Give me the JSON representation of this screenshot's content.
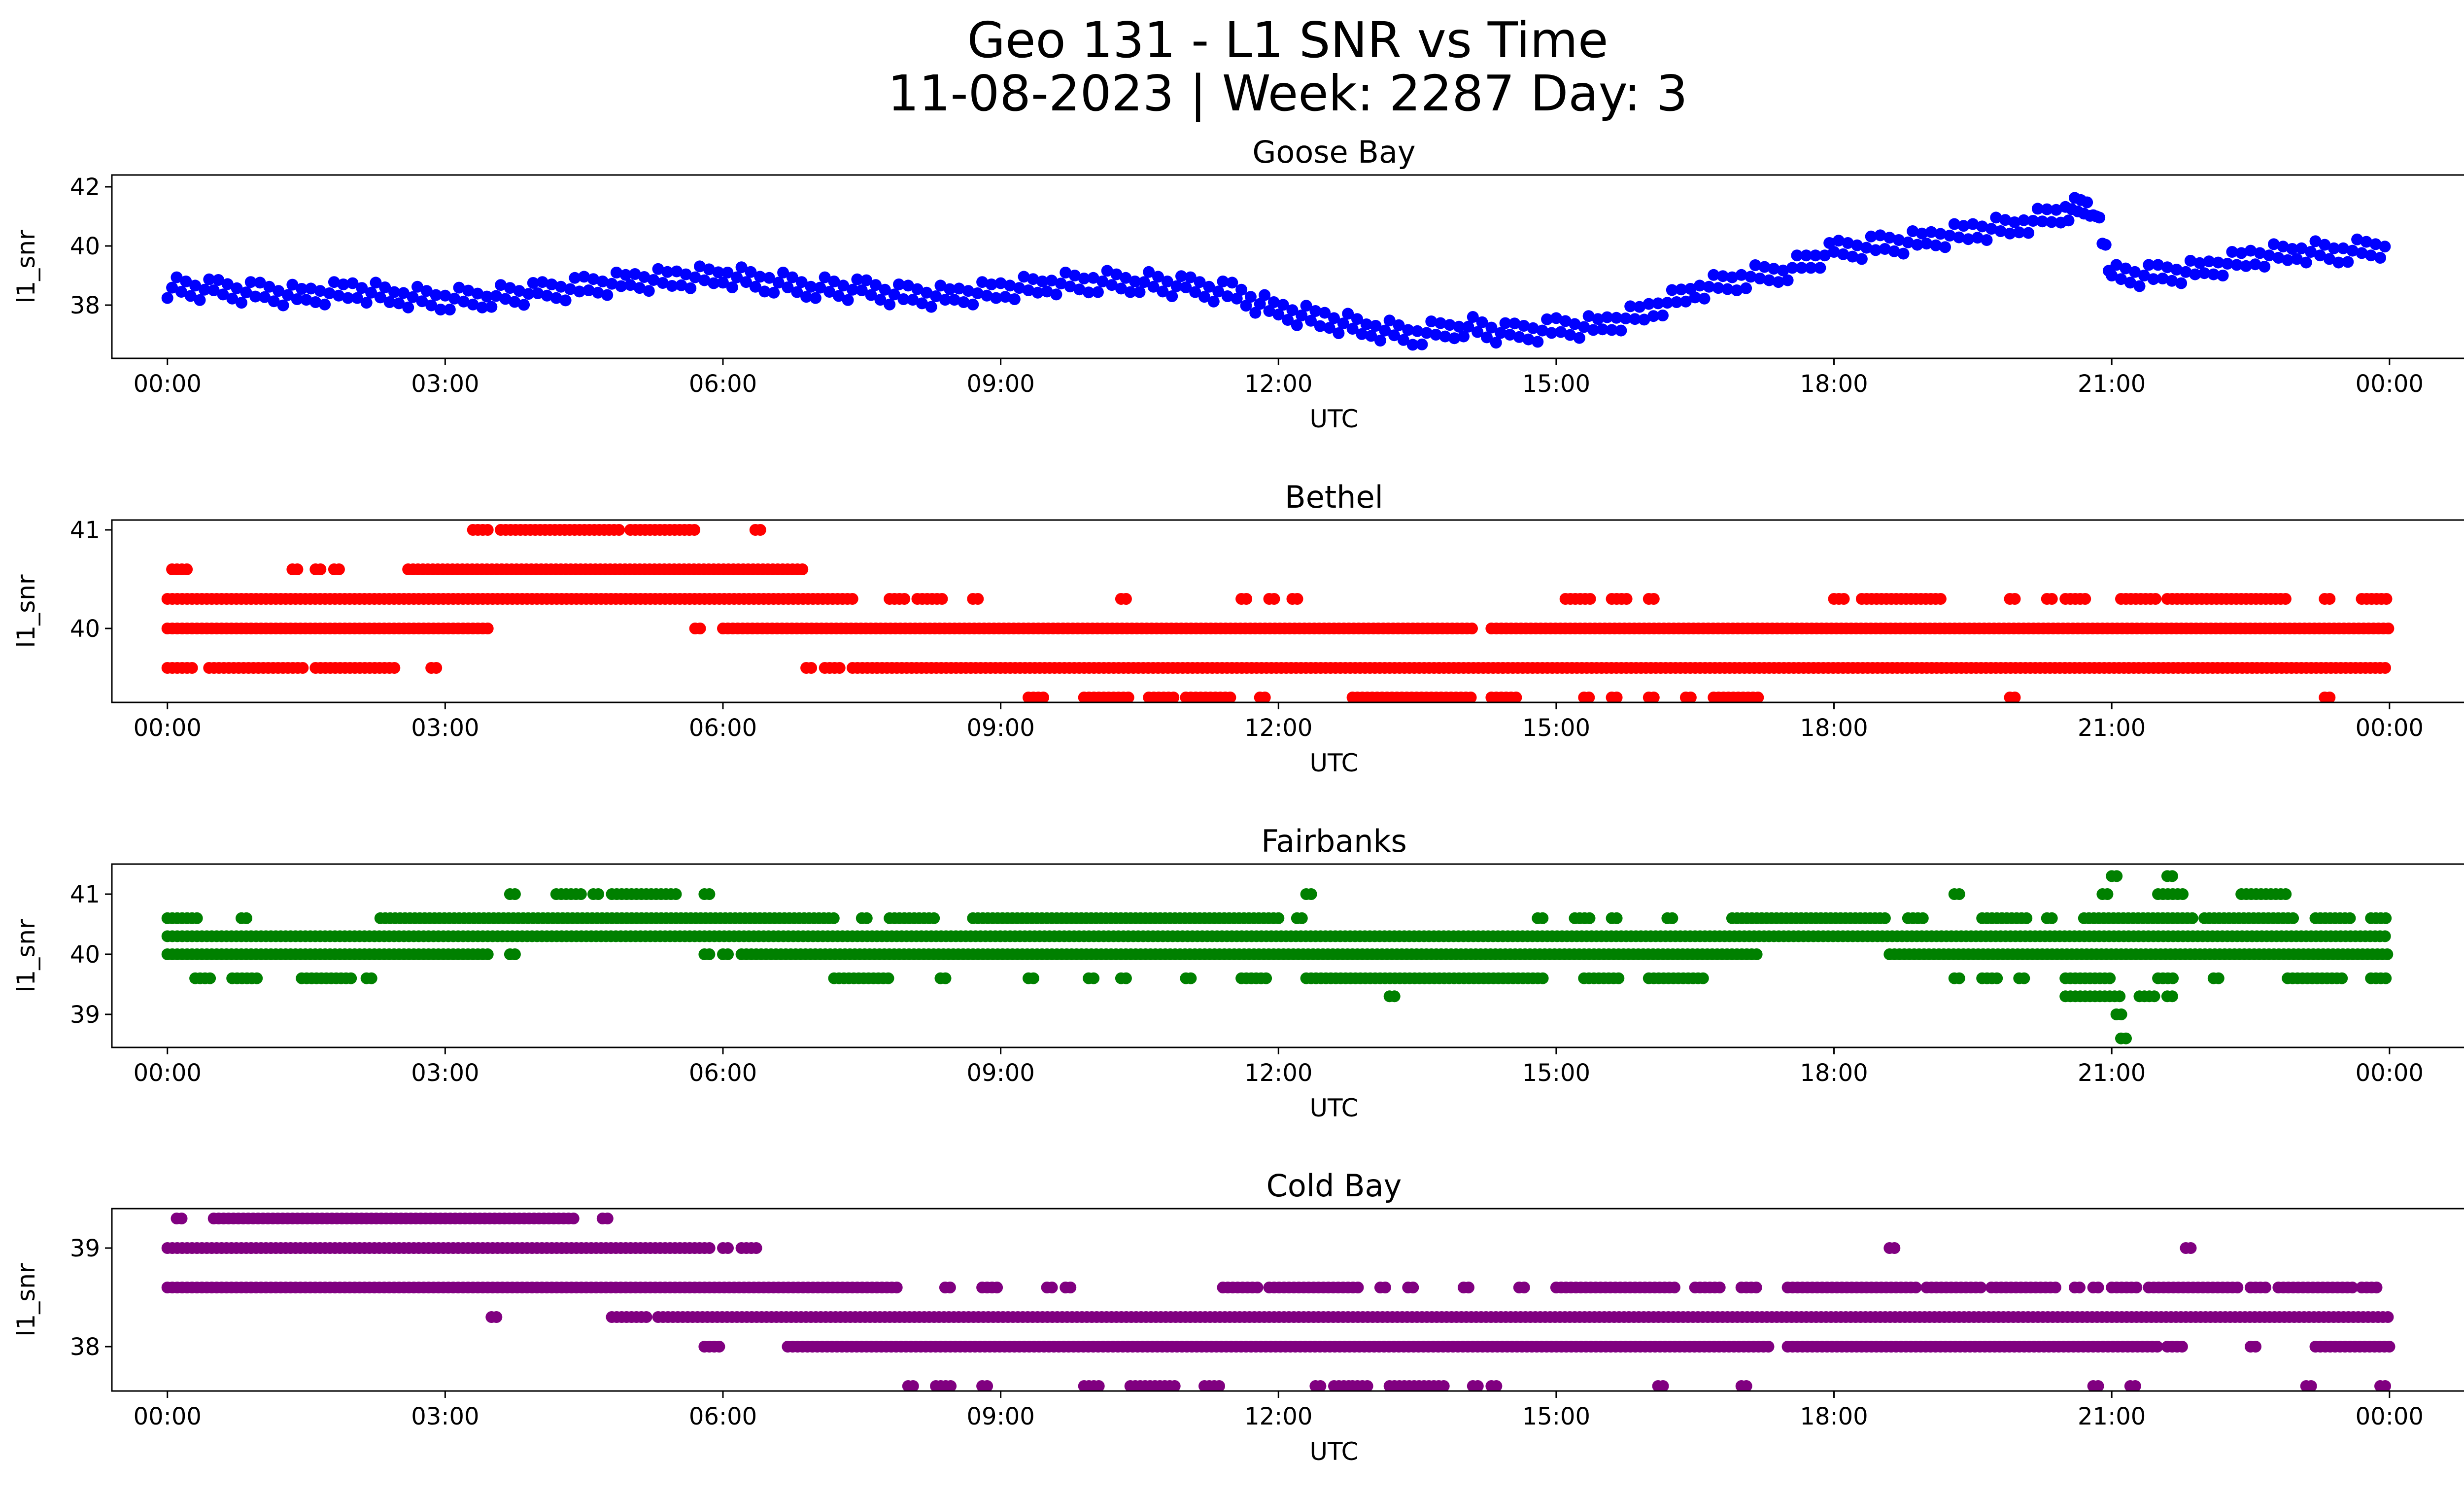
{
  "figure": {
    "title_line1": "Geo 131 - L1 SNR vs Time",
    "title_line2": "11-08-2023 | Week: 2287 Day: 3"
  },
  "chart_data": [
    {
      "type": "scatter",
      "title": "Goose Bay",
      "xlabel": "UTC",
      "ylabel": "l1_snr",
      "color": "#0000ff",
      "x_ticks": [
        "00:00",
        "03:00",
        "06:00",
        "09:00",
        "12:00",
        "15:00",
        "18:00",
        "21:00",
        "00:00"
      ],
      "x_range_hours": [
        -0.6,
        25.8
      ],
      "y_ticks": [
        38,
        40,
        42
      ],
      "ylim": [
        36.2,
        42.4
      ],
      "series": [
        {
          "kind": "profile",
          "values": [
            [
              0.0,
              38.6
            ],
            [
              0.5,
              38.5
            ],
            [
              1.0,
              38.4
            ],
            [
              1.5,
              38.3
            ],
            [
              2.0,
              38.5
            ],
            [
              2.5,
              38.3
            ],
            [
              3.0,
              38.2
            ],
            [
              3.5,
              38.3
            ],
            [
              4.0,
              38.4
            ],
            [
              4.5,
              38.6
            ],
            [
              5.0,
              38.8
            ],
            [
              5.5,
              38.9
            ],
            [
              6.0,
              39.0
            ],
            [
              6.5,
              38.8
            ],
            [
              7.0,
              38.6
            ],
            [
              7.5,
              38.5
            ],
            [
              8.0,
              38.3
            ],
            [
              8.5,
              38.3
            ],
            [
              9.0,
              38.5
            ],
            [
              9.5,
              38.7
            ],
            [
              10.0,
              38.8
            ],
            [
              10.5,
              38.8
            ],
            [
              11.0,
              38.6
            ],
            [
              11.5,
              38.4
            ],
            [
              12.0,
              37.8
            ],
            [
              12.5,
              37.5
            ],
            [
              13.0,
              37.2
            ],
            [
              13.5,
              37.0
            ],
            [
              14.0,
              37.3
            ],
            [
              14.5,
              37.0
            ],
            [
              15.0,
              37.2
            ],
            [
              15.5,
              37.3
            ],
            [
              16.0,
              37.8
            ],
            [
              16.5,
              38.5
            ],
            [
              17.0,
              38.9
            ],
            [
              17.5,
              39.2
            ],
            [
              18.0,
              39.8
            ],
            [
              18.5,
              40.0
            ],
            [
              19.0,
              40.2
            ],
            [
              19.5,
              40.5
            ],
            [
              20.0,
              40.7
            ],
            [
              20.5,
              41.2
            ],
            [
              20.8,
              41.4
            ],
            [
              21.0,
              39.0
            ],
            [
              21.5,
              39.0
            ],
            [
              22.0,
              39.2
            ],
            [
              22.5,
              39.6
            ],
            [
              23.0,
              39.8
            ],
            [
              23.5,
              39.8
            ],
            [
              24.0,
              40.0
            ]
          ]
        }
      ]
    },
    {
      "type": "scatter",
      "title": "Bethel",
      "xlabel": "UTC",
      "ylabel": "l1_snr",
      "color": "#ff0000",
      "x_ticks": [
        "00:00",
        "03:00",
        "06:00",
        "09:00",
        "12:00",
        "15:00",
        "18:00",
        "21:00",
        "00:00"
      ],
      "x_range_hours": [
        -0.6,
        25.8
      ],
      "y_ticks": [
        40,
        41
      ],
      "ylim": [
        39.25,
        41.1
      ],
      "series": [
        {
          "level": 41.0,
          "runs": [
            [
              3.3,
              3.5
            ],
            [
              3.6,
              4.9
            ],
            [
              5.0,
              5.7
            ],
            [
              6.35,
              6.45
            ]
          ]
        },
        {
          "level": 40.6,
          "runs": [
            [
              0.05,
              0.25
            ],
            [
              1.35,
              1.45
            ],
            [
              1.6,
              1.7
            ],
            [
              1.8,
              1.9
            ],
            [
              2.6,
              6.9
            ]
          ]
        },
        {
          "level": 40.3,
          "runs": [
            [
              0.0,
              7.4
            ],
            [
              7.8,
              8.0
            ],
            [
              8.1,
              8.4
            ],
            [
              8.7,
              8.8
            ],
            [
              10.3,
              10.4
            ],
            [
              11.6,
              11.7
            ],
            [
              11.9,
              12.0
            ],
            [
              12.15,
              12.25
            ],
            [
              15.1,
              15.4
            ],
            [
              15.6,
              15.8
            ],
            [
              16.0,
              16.1
            ],
            [
              18.0,
              18.15
            ],
            [
              18.3,
              19.2
            ],
            [
              19.9,
              20.0
            ],
            [
              20.3,
              20.4
            ],
            [
              20.5,
              20.75
            ],
            [
              21.1,
              21.5
            ],
            [
              21.6,
              22.9
            ],
            [
              23.3,
              23.4
            ],
            [
              23.7,
              24.0
            ]
          ]
        },
        {
          "level": 40.0,
          "runs": [
            [
              0.0,
              3.5
            ],
            [
              5.7,
              5.8
            ],
            [
              6.0,
              14.1
            ],
            [
              14.3,
              24.0
            ]
          ]
        },
        {
          "level": 39.6,
          "runs": [
            [
              0.0,
              0.3
            ],
            [
              0.45,
              1.5
            ],
            [
              1.6,
              2.5
            ],
            [
              2.85,
              2.95
            ],
            [
              6.9,
              7.0
            ],
            [
              7.1,
              7.3
            ],
            [
              7.4,
              24.0
            ]
          ]
        },
        {
          "level": 39.3,
          "runs": [
            [
              9.3,
              9.5
            ],
            [
              9.9,
              10.4
            ],
            [
              10.6,
              10.9
            ],
            [
              11.0,
              11.5
            ],
            [
              11.8,
              11.9
            ],
            [
              12.8,
              14.1
            ],
            [
              14.3,
              14.6
            ],
            [
              15.3,
              15.4
            ],
            [
              15.6,
              15.7
            ],
            [
              16.0,
              16.1
            ],
            [
              16.4,
              16.5
            ],
            [
              16.7,
              17.2
            ],
            [
              19.9,
              20.0
            ],
            [
              23.3,
              23.4
            ]
          ]
        }
      ]
    },
    {
      "type": "scatter",
      "title": "Fairbanks",
      "xlabel": "UTC",
      "ylabel": "l1_snr",
      "color": "#008000",
      "x_ticks": [
        "00:00",
        "03:00",
        "06:00",
        "09:00",
        "12:00",
        "15:00",
        "18:00",
        "21:00",
        "00:00"
      ],
      "x_range_hours": [
        -0.6,
        25.8
      ],
      "y_ticks": [
        39,
        40,
        41
      ],
      "ylim": [
        38.45,
        41.5
      ],
      "series": [
        {
          "level": 41.3,
          "runs": [
            [
              21.0,
              21.1
            ],
            [
              21.6,
              21.7
            ]
          ]
        },
        {
          "level": 41.0,
          "runs": [
            [
              3.7,
              3.8
            ],
            [
              4.2,
              4.5
            ],
            [
              4.6,
              4.7
            ],
            [
              4.8,
              5.5
            ],
            [
              5.8,
              5.9
            ],
            [
              12.3,
              12.4
            ],
            [
              19.3,
              19.4
            ],
            [
              20.9,
              21.0
            ],
            [
              21.5,
              21.8
            ],
            [
              22.4,
              22.9
            ]
          ]
        },
        {
          "level": 40.6,
          "runs": [
            [
              0.0,
              0.35
            ],
            [
              0.8,
              0.9
            ],
            [
              2.3,
              7.2
            ],
            [
              7.5,
              7.6
            ],
            [
              7.8,
              8.3
            ],
            [
              8.7,
              12.0
            ],
            [
              12.2,
              12.3
            ],
            [
              14.8,
              14.9
            ],
            [
              15.2,
              15.4
            ],
            [
              15.6,
              15.7
            ],
            [
              16.2,
              16.3
            ],
            [
              16.9,
              18.6
            ],
            [
              18.8,
              19.0
            ],
            [
              19.6,
              20.1
            ],
            [
              20.3,
              20.4
            ],
            [
              20.7,
              21.9
            ],
            [
              22.0,
              23.0
            ],
            [
              23.2,
              23.6
            ],
            [
              23.8,
              24.0
            ]
          ]
        },
        {
          "level": 40.3,
          "runs": [
            [
              0.0,
              24.0
            ]
          ]
        },
        {
          "level": 40.0,
          "runs": [
            [
              0.0,
              3.5
            ],
            [
              3.7,
              3.8
            ],
            [
              5.8,
              5.9
            ],
            [
              6.0,
              6.1
            ],
            [
              6.2,
              17.2
            ],
            [
              18.6,
              24.0
            ]
          ]
        },
        {
          "level": 39.6,
          "runs": [
            [
              0.3,
              0.5
            ],
            [
              0.7,
              1.0
            ],
            [
              1.45,
              2.0
            ],
            [
              2.15,
              2.25
            ],
            [
              7.2,
              7.8
            ],
            [
              8.35,
              8.45
            ],
            [
              9.3,
              9.4
            ],
            [
              9.95,
              10.05
            ],
            [
              10.3,
              10.4
            ],
            [
              11.0,
              11.1
            ],
            [
              11.6,
              11.9
            ],
            [
              12.3,
              14.9
            ],
            [
              15.3,
              15.7
            ],
            [
              16.0,
              16.6
            ],
            [
              19.3,
              19.4
            ],
            [
              19.6,
              19.8
            ],
            [
              20.0,
              20.1
            ],
            [
              20.5,
              21.0
            ],
            [
              21.5,
              21.7
            ],
            [
              22.1,
              22.2
            ],
            [
              22.9,
              23.5
            ],
            [
              23.8,
              24.0
            ]
          ]
        },
        {
          "level": 39.3,
          "runs": [
            [
              13.2,
              13.3
            ],
            [
              20.5,
              21.1
            ],
            [
              21.3,
              21.5
            ],
            [
              21.6,
              21.7
            ]
          ]
        },
        {
          "level": 39.0,
          "runs": [
            [
              21.05,
              21.15
            ]
          ]
        },
        {
          "level": 38.6,
          "runs": [
            [
              21.1,
              21.2
            ]
          ]
        }
      ]
    },
    {
      "type": "scatter",
      "title": "Cold Bay",
      "xlabel": "UTC",
      "ylabel": "l1_snr",
      "color": "#800080",
      "x_ticks": [
        "00:00",
        "03:00",
        "06:00",
        "09:00",
        "12:00",
        "15:00",
        "18:00",
        "21:00",
        "00:00"
      ],
      "x_range_hours": [
        -0.6,
        25.8
      ],
      "y_ticks": [
        38,
        39
      ],
      "ylim": [
        37.55,
        39.4
      ],
      "series": [
        {
          "level": 39.3,
          "runs": [
            [
              0.1,
              0.2
            ],
            [
              0.5,
              4.4
            ],
            [
              4.7,
              4.8
            ]
          ]
        },
        {
          "level": 39.0,
          "runs": [
            [
              0.0,
              5.9
            ],
            [
              6.0,
              6.1
            ],
            [
              6.2,
              6.4
            ],
            [
              18.6,
              18.7
            ],
            [
              21.8,
              21.9
            ]
          ]
        },
        {
          "level": 38.6,
          "runs": [
            [
              0.0,
              7.9
            ],
            [
              8.4,
              8.5
            ],
            [
              8.8,
              9.0
            ],
            [
              9.5,
              9.6
            ],
            [
              9.7,
              9.8
            ],
            [
              11.4,
              11.8
            ],
            [
              11.9,
              12.9
            ],
            [
              13.1,
              13.2
            ],
            [
              13.4,
              13.5
            ],
            [
              14.0,
              14.1
            ],
            [
              14.6,
              14.7
            ],
            [
              15.0,
              16.3
            ],
            [
              16.5,
              16.8
            ],
            [
              17.0,
              17.2
            ],
            [
              17.5,
              18.9
            ],
            [
              19.0,
              19.6
            ],
            [
              19.7,
              20.4
            ],
            [
              20.6,
              20.7
            ],
            [
              20.8,
              20.9
            ],
            [
              21.0,
              21.3
            ],
            [
              21.4,
              22.4
            ],
            [
              22.5,
              22.7
            ],
            [
              22.8,
              23.6
            ],
            [
              23.7,
              23.9
            ]
          ]
        },
        {
          "level": 38.3,
          "runs": [
            [
              3.5,
              3.6
            ],
            [
              4.8,
              5.2
            ],
            [
              5.3,
              24.0
            ]
          ]
        },
        {
          "level": 38.0,
          "runs": [
            [
              5.8,
              6.0
            ],
            [
              6.7,
              17.3
            ],
            [
              17.5,
              21.5
            ],
            [
              21.6,
              21.8
            ],
            [
              22.5,
              22.6
            ],
            [
              23.2,
              24.0
            ]
          ]
        },
        {
          "level": 37.6,
          "runs": [
            [
              8.0,
              8.1
            ],
            [
              8.3,
              8.5
            ],
            [
              8.8,
              8.9
            ],
            [
              9.9,
              10.1
            ],
            [
              10.4,
              10.9
            ],
            [
              11.2,
              11.4
            ],
            [
              12.4,
              12.5
            ],
            [
              12.6,
              12.8
            ],
            [
              12.8,
              13.0
            ],
            [
              13.2,
              13.8
            ],
            [
              14.1,
              14.2
            ],
            [
              14.3,
              14.4
            ],
            [
              16.1,
              16.2
            ],
            [
              17.0,
              17.1
            ],
            [
              20.8,
              20.9
            ],
            [
              21.2,
              21.3
            ],
            [
              23.1,
              23.2
            ],
            [
              23.9,
              24.0
            ]
          ]
        }
      ]
    }
  ]
}
